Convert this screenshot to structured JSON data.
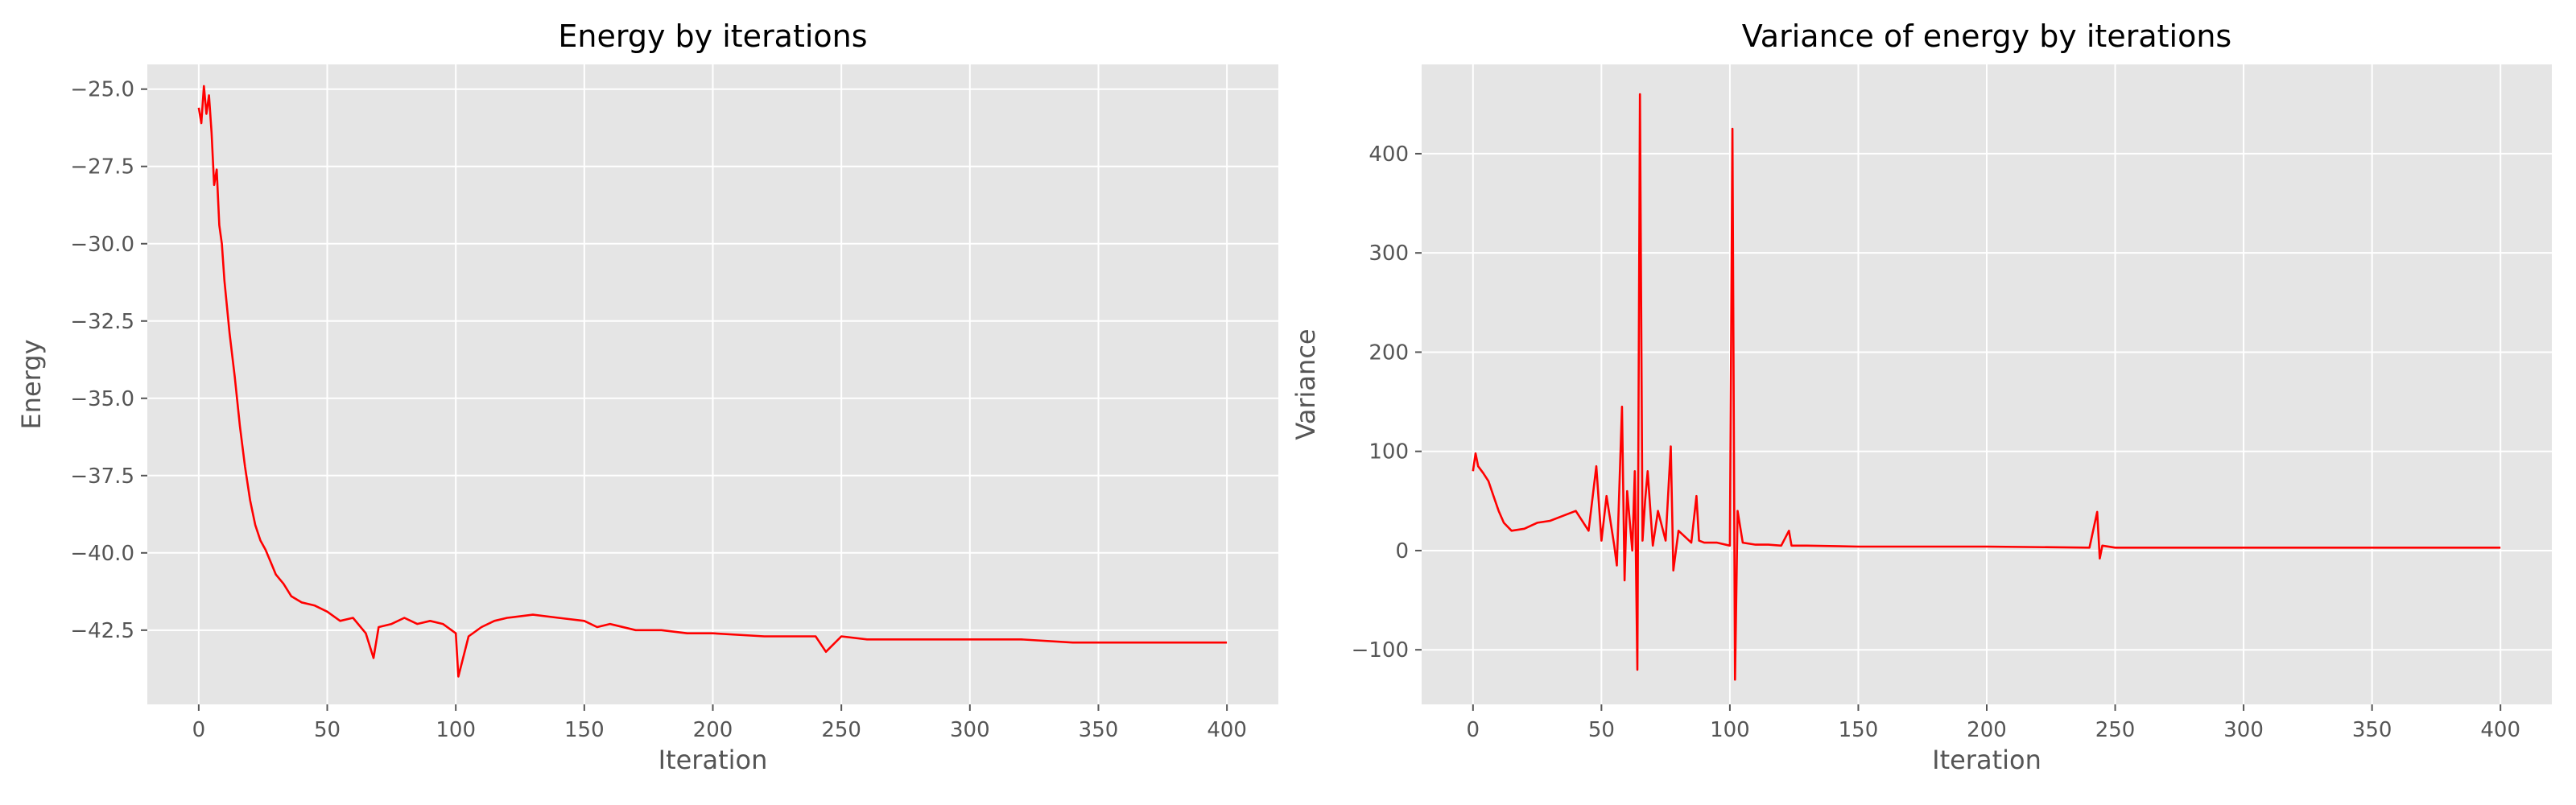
{
  "colors": {
    "panel_bg": "#e5e5e5",
    "grid": "#ffffff",
    "series": "#ff0000",
    "text": "#555555"
  },
  "chart_data": [
    {
      "type": "line",
      "title": "Energy by iterations",
      "xlabel": "Iteration",
      "ylabel": "Energy",
      "xlim": [
        -20,
        420
      ],
      "ylim": [
        -44.9,
        -24.2
      ],
      "xticks": [
        0,
        50,
        100,
        150,
        200,
        250,
        300,
        350,
        400
      ],
      "xtick_labels": [
        "0",
        "50",
        "100",
        "150",
        "200",
        "250",
        "300",
        "350",
        "400"
      ],
      "yticks": [
        -42.5,
        -40.0,
        -37.5,
        -35.0,
        -32.5,
        -30.0,
        -27.5,
        -25.0
      ],
      "ytick_labels": [
        "−42.5",
        "−40.0",
        "−37.5",
        "−35.0",
        "−32.5",
        "−30.0",
        "−27.5",
        "−25.0"
      ],
      "grid": true,
      "series": [
        {
          "color": "#ff0000",
          "x": [
            0,
            1,
            2,
            3,
            4,
            5,
            6,
            7,
            8,
            9,
            10,
            12,
            14,
            16,
            18,
            20,
            22,
            24,
            26,
            28,
            30,
            33,
            36,
            40,
            45,
            50,
            55,
            60,
            65,
            68,
            70,
            75,
            80,
            85,
            90,
            95,
            100,
            101,
            105,
            110,
            115,
            120,
            130,
            140,
            150,
            155,
            160,
            170,
            180,
            190,
            200,
            220,
            240,
            244,
            250,
            260,
            280,
            300,
            320,
            340,
            360,
            380,
            400
          ],
          "y": [
            -25.6,
            -26.1,
            -24.9,
            -25.8,
            -25.2,
            -26.4,
            -28.1,
            -27.6,
            -29.4,
            -30.0,
            -31.2,
            -32.9,
            -34.3,
            -35.9,
            -37.2,
            -38.3,
            -39.1,
            -39.6,
            -39.9,
            -40.3,
            -40.7,
            -41.0,
            -41.4,
            -41.6,
            -41.7,
            -41.9,
            -42.2,
            -42.1,
            -42.6,
            -43.4,
            -42.4,
            -42.3,
            -42.1,
            -42.3,
            -42.2,
            -42.3,
            -42.6,
            -44.0,
            -42.7,
            -42.4,
            -42.2,
            -42.1,
            -42.0,
            -42.1,
            -42.2,
            -42.4,
            -42.3,
            -42.5,
            -42.5,
            -42.6,
            -42.6,
            -42.7,
            -42.7,
            -43.2,
            -42.7,
            -42.8,
            -42.8,
            -42.8,
            -42.8,
            -42.9,
            -42.9,
            -42.9,
            -42.9
          ]
        }
      ]
    },
    {
      "type": "line",
      "title": "Variance of energy by iterations",
      "xlabel": "Iteration",
      "ylabel": "Variance",
      "xlim": [
        -20,
        420
      ],
      "ylim": [
        -155,
        490
      ],
      "xticks": [
        0,
        50,
        100,
        150,
        200,
        250,
        300,
        350,
        400
      ],
      "xtick_labels": [
        "0",
        "50",
        "100",
        "150",
        "200",
        "250",
        "300",
        "350",
        "400"
      ],
      "yticks": [
        -100,
        0,
        100,
        200,
        300,
        400
      ],
      "ytick_labels": [
        "−100",
        "0",
        "100",
        "200",
        "300",
        "400"
      ],
      "grid": true,
      "series": [
        {
          "color": "#ff0000",
          "x": [
            0,
            1,
            2,
            4,
            6,
            8,
            10,
            12,
            15,
            20,
            25,
            30,
            35,
            40,
            45,
            48,
            50,
            52,
            55,
            56,
            58,
            59,
            60,
            62,
            63,
            64,
            65,
            66,
            67,
            68,
            70,
            72,
            75,
            77,
            78,
            80,
            85,
            87,
            88,
            90,
            95,
            100,
            101,
            102,
            103,
            105,
            110,
            115,
            120,
            123,
            124,
            130,
            150,
            200,
            240,
            243,
            244,
            245,
            250,
            300,
            350,
            400
          ],
          "y": [
            80,
            98,
            85,
            78,
            70,
            55,
            40,
            28,
            20,
            22,
            28,
            30,
            35,
            40,
            20,
            85,
            10,
            55,
            5,
            -15,
            145,
            -30,
            60,
            0,
            80,
            -120,
            460,
            10,
            50,
            80,
            5,
            40,
            10,
            105,
            -20,
            20,
            8,
            55,
            10,
            8,
            8,
            5,
            425,
            -130,
            40,
            8,
            6,
            6,
            5,
            20,
            5,
            5,
            4,
            4,
            3,
            39,
            -8,
            5,
            3,
            3,
            3,
            3
          ]
        }
      ]
    }
  ]
}
